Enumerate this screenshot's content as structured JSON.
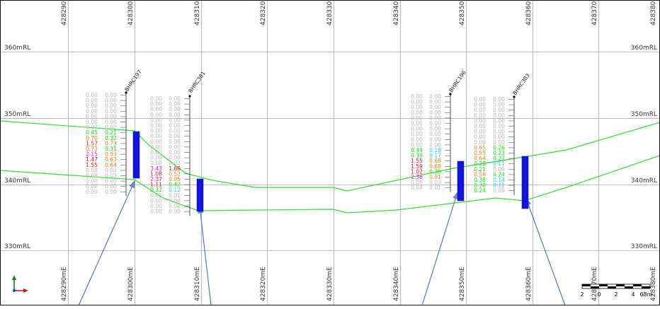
{
  "section": {
    "easting_labels": [
      "428290mE",
      "428300mE",
      "428310mE",
      "428320mE",
      "428330mE",
      "428340mE",
      "428350mE",
      "428360mE",
      "428370mE",
      "428380mE"
    ],
    "rl_labels": [
      {
        "text": "360mRL",
        "rl": 360
      },
      {
        "text": "350mRL",
        "rl": 350
      },
      {
        "text": "340mRL",
        "rl": 340
      },
      {
        "text": "330mRL",
        "rl": 330
      }
    ],
    "colors": {
      "grid": "#b9b9b9",
      "border": "#111111",
      "surface": "#33dd33",
      "trace": "#5577bb",
      "interval": "#1414d8",
      "low": "#b8b8b8",
      "green": "#11dd11",
      "orange": "#f07d18",
      "red": "#e01414",
      "magenta": "#e012e0",
      "cyan": "#22ccee"
    }
  },
  "holes": [
    {
      "name": "BHRC197",
      "values": [
        [
          "0.00",
          "0.00",
          "low",
          "low"
        ],
        [
          "0.00",
          "0.00",
          "low",
          "low"
        ],
        [
          "0.00",
          "0.00",
          "low",
          "low"
        ],
        [
          "0.00",
          "0.00",
          "low",
          "low"
        ],
        [
          "0.00",
          "0.00",
          "low",
          "low"
        ],
        [
          "0.00",
          "0.00",
          "low",
          "low"
        ],
        [
          "0.07",
          "0.02",
          "low",
          "low"
        ],
        [
          "0.45",
          "0.21",
          "green",
          "green"
        ],
        [
          "0.70",
          "0.32",
          "orange",
          "green"
        ],
        [
          "1.57",
          "0.73",
          "red",
          "orange"
        ],
        [
          "0.73",
          "0.31",
          "orange",
          "green"
        ],
        [
          "2.15",
          "0.93",
          "magenta",
          "orange"
        ],
        [
          "1.47",
          "0.63",
          "red",
          "orange"
        ],
        [
          "1.55",
          "0.64",
          "red",
          "orange"
        ],
        [
          "0.08",
          "0.03",
          "low",
          "low"
        ],
        [
          "0.08",
          "0.03",
          "low",
          "low"
        ],
        [
          "0.00",
          "0.00",
          "low",
          "low"
        ],
        [
          "0.00",
          "0.00",
          "low",
          "low"
        ],
        [
          "0.00",
          "0.00",
          "low",
          "low"
        ]
      ]
    },
    {
      "name": "BHRC381",
      "values": [
        [
          "0.00",
          "0.00",
          "low",
          "low"
        ],
        [
          "0.00",
          "0.00",
          "low",
          "low"
        ],
        [
          "0.00",
          "0.00",
          "low",
          "low"
        ],
        [
          "0.00",
          "0.00",
          "low",
          "low"
        ],
        [
          "0.00",
          "0.00",
          "low",
          "low"
        ],
        [
          "0.00",
          "0.00",
          "low",
          "low"
        ],
        [
          "0.00",
          "0.00",
          "low",
          "low"
        ],
        [
          "0.00",
          "0.00",
          "low",
          "low"
        ],
        [
          "0.00",
          "0.00",
          "low",
          "low"
        ],
        [
          "0.00",
          "0.00",
          "low",
          "low"
        ],
        [
          "0.00",
          "0.00",
          "low",
          "low"
        ],
        [
          "0.00",
          "0.00",
          "low",
          "low"
        ],
        [
          "0.08",
          "0.02",
          "low",
          "low"
        ],
        [
          "3.43",
          "1.68",
          "magenta",
          "red"
        ],
        [
          "1.08",
          "0.52",
          "red",
          "orange"
        ],
        [
          "2.37",
          "0.95",
          "magenta",
          "orange"
        ],
        [
          "1.11",
          "0.42",
          "red",
          "green"
        ],
        [
          "0.32",
          "0.12",
          "green",
          "cyan"
        ],
        [
          "0.05",
          "0.01",
          "low",
          "low"
        ],
        [
          "0.00",
          "0.00",
          "low",
          "low"
        ],
        [
          "0.00",
          "0.00",
          "low",
          "low"
        ],
        [
          "0.00",
          "0.00",
          "low",
          "low"
        ]
      ]
    },
    {
      "name": "BHRC196",
      "values": [
        [
          "0.00",
          "0.00",
          "low",
          "low"
        ],
        [
          "0.00",
          "0.00",
          "low",
          "low"
        ],
        [
          "0.00",
          "0.00",
          "low",
          "low"
        ],
        [
          "0.00",
          "0.00",
          "low",
          "low"
        ],
        [
          "0.00",
          "0.00",
          "low",
          "low"
        ],
        [
          "0.00",
          "0.00",
          "low",
          "low"
        ],
        [
          "0.00",
          "0.00",
          "low",
          "low"
        ],
        [
          "0.00",
          "0.00",
          "low",
          "low"
        ],
        [
          "0.00",
          "0.00",
          "low",
          "low"
        ],
        [
          "0.00",
          "0.00",
          "low",
          "low"
        ],
        [
          "0.44",
          "0.18",
          "green",
          "cyan"
        ],
        [
          "0.38",
          "0.17",
          "green",
          "cyan"
        ],
        [
          "1.55",
          "0.68",
          "red",
          "orange"
        ],
        [
          "1.59",
          "0.68",
          "red",
          "orange"
        ],
        [
          "1.02",
          "0.38",
          "red",
          "green"
        ],
        [
          "2.36",
          "0.91",
          "magenta",
          "orange"
        ],
        [
          "0.08",
          "0.03",
          "low",
          "low"
        ],
        [
          "0.04",
          "0.01",
          "low",
          "low"
        ]
      ]
    },
    {
      "name": "BHRC383",
      "values": [
        [
          "0.00",
          "0.00",
          "low",
          "low"
        ],
        [
          "0.00",
          "0.00",
          "low",
          "low"
        ],
        [
          "0.00",
          "0.00",
          "low",
          "low"
        ],
        [
          "0.00",
          "0.00",
          "low",
          "low"
        ],
        [
          "0.00",
          "0.00",
          "low",
          "low"
        ],
        [
          "0.00",
          "0.00",
          "low",
          "low"
        ],
        [
          "0.00",
          "0.00",
          "low",
          "low"
        ],
        [
          "0.00",
          "0.00",
          "low",
          "low"
        ],
        [
          "0.00",
          "0.00",
          "low",
          "low"
        ],
        [
          "0.65",
          "0.26",
          "orange",
          "green"
        ],
        [
          "0.55",
          "0.23",
          "orange",
          "green"
        ],
        [
          "0.64",
          "0.27",
          "orange",
          "green"
        ],
        [
          "0.28",
          "0.11",
          "green",
          "cyan"
        ],
        [
          "0.21",
          "0.09",
          "green",
          "low"
        ],
        [
          "0.58",
          "0.24",
          "orange",
          "green"
        ],
        [
          "0.38",
          "0.14",
          "green",
          "cyan"
        ],
        [
          "0.30",
          "0.11",
          "green",
          "cyan"
        ],
        [
          "0.24",
          "0.09",
          "green",
          "low"
        ]
      ]
    }
  ],
  "scale_bar": {
    "labels": [
      "2",
      "0",
      "2",
      "4",
      "6",
      "8m"
    ],
    "overlap_label": "428370mE"
  }
}
